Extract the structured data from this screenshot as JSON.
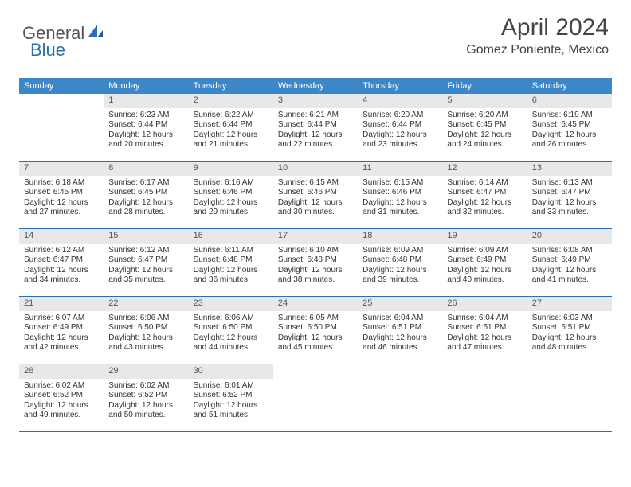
{
  "logo": {
    "general": "General",
    "blue": "Blue"
  },
  "header": {
    "month_title": "April 2024",
    "location": "Gomez Poniente, Mexico"
  },
  "dow": [
    "Sunday",
    "Monday",
    "Tuesday",
    "Wednesday",
    "Thursday",
    "Friday",
    "Saturday"
  ],
  "colors": {
    "header_bg": "#3b87c8",
    "row_border": "#2a6fb5",
    "daynum_bg": "#e8e8e8",
    "text": "#333333"
  },
  "weeks": [
    [
      {
        "blank": true
      },
      {
        "n": "1",
        "sr": "Sunrise: 6:23 AM",
        "ss": "Sunset: 6:44 PM",
        "d1": "Daylight: 12 hours",
        "d2": "and 20 minutes."
      },
      {
        "n": "2",
        "sr": "Sunrise: 6:22 AM",
        "ss": "Sunset: 6:44 PM",
        "d1": "Daylight: 12 hours",
        "d2": "and 21 minutes."
      },
      {
        "n": "3",
        "sr": "Sunrise: 6:21 AM",
        "ss": "Sunset: 6:44 PM",
        "d1": "Daylight: 12 hours",
        "d2": "and 22 minutes."
      },
      {
        "n": "4",
        "sr": "Sunrise: 6:20 AM",
        "ss": "Sunset: 6:44 PM",
        "d1": "Daylight: 12 hours",
        "d2": "and 23 minutes."
      },
      {
        "n": "5",
        "sr": "Sunrise: 6:20 AM",
        "ss": "Sunset: 6:45 PM",
        "d1": "Daylight: 12 hours",
        "d2": "and 24 minutes."
      },
      {
        "n": "6",
        "sr": "Sunrise: 6:19 AM",
        "ss": "Sunset: 6:45 PM",
        "d1": "Daylight: 12 hours",
        "d2": "and 26 minutes."
      }
    ],
    [
      {
        "n": "7",
        "sr": "Sunrise: 6:18 AM",
        "ss": "Sunset: 6:45 PM",
        "d1": "Daylight: 12 hours",
        "d2": "and 27 minutes."
      },
      {
        "n": "8",
        "sr": "Sunrise: 6:17 AM",
        "ss": "Sunset: 6:45 PM",
        "d1": "Daylight: 12 hours",
        "d2": "and 28 minutes."
      },
      {
        "n": "9",
        "sr": "Sunrise: 6:16 AM",
        "ss": "Sunset: 6:46 PM",
        "d1": "Daylight: 12 hours",
        "d2": "and 29 minutes."
      },
      {
        "n": "10",
        "sr": "Sunrise: 6:15 AM",
        "ss": "Sunset: 6:46 PM",
        "d1": "Daylight: 12 hours",
        "d2": "and 30 minutes."
      },
      {
        "n": "11",
        "sr": "Sunrise: 6:15 AM",
        "ss": "Sunset: 6:46 PM",
        "d1": "Daylight: 12 hours",
        "d2": "and 31 minutes."
      },
      {
        "n": "12",
        "sr": "Sunrise: 6:14 AM",
        "ss": "Sunset: 6:47 PM",
        "d1": "Daylight: 12 hours",
        "d2": "and 32 minutes."
      },
      {
        "n": "13",
        "sr": "Sunrise: 6:13 AM",
        "ss": "Sunset: 6:47 PM",
        "d1": "Daylight: 12 hours",
        "d2": "and 33 minutes."
      }
    ],
    [
      {
        "n": "14",
        "sr": "Sunrise: 6:12 AM",
        "ss": "Sunset: 6:47 PM",
        "d1": "Daylight: 12 hours",
        "d2": "and 34 minutes."
      },
      {
        "n": "15",
        "sr": "Sunrise: 6:12 AM",
        "ss": "Sunset: 6:47 PM",
        "d1": "Daylight: 12 hours",
        "d2": "and 35 minutes."
      },
      {
        "n": "16",
        "sr": "Sunrise: 6:11 AM",
        "ss": "Sunset: 6:48 PM",
        "d1": "Daylight: 12 hours",
        "d2": "and 36 minutes."
      },
      {
        "n": "17",
        "sr": "Sunrise: 6:10 AM",
        "ss": "Sunset: 6:48 PM",
        "d1": "Daylight: 12 hours",
        "d2": "and 38 minutes."
      },
      {
        "n": "18",
        "sr": "Sunrise: 6:09 AM",
        "ss": "Sunset: 6:48 PM",
        "d1": "Daylight: 12 hours",
        "d2": "and 39 minutes."
      },
      {
        "n": "19",
        "sr": "Sunrise: 6:09 AM",
        "ss": "Sunset: 6:49 PM",
        "d1": "Daylight: 12 hours",
        "d2": "and 40 minutes."
      },
      {
        "n": "20",
        "sr": "Sunrise: 6:08 AM",
        "ss": "Sunset: 6:49 PM",
        "d1": "Daylight: 12 hours",
        "d2": "and 41 minutes."
      }
    ],
    [
      {
        "n": "21",
        "sr": "Sunrise: 6:07 AM",
        "ss": "Sunset: 6:49 PM",
        "d1": "Daylight: 12 hours",
        "d2": "and 42 minutes."
      },
      {
        "n": "22",
        "sr": "Sunrise: 6:06 AM",
        "ss": "Sunset: 6:50 PM",
        "d1": "Daylight: 12 hours",
        "d2": "and 43 minutes."
      },
      {
        "n": "23",
        "sr": "Sunrise: 6:06 AM",
        "ss": "Sunset: 6:50 PM",
        "d1": "Daylight: 12 hours",
        "d2": "and 44 minutes."
      },
      {
        "n": "24",
        "sr": "Sunrise: 6:05 AM",
        "ss": "Sunset: 6:50 PM",
        "d1": "Daylight: 12 hours",
        "d2": "and 45 minutes."
      },
      {
        "n": "25",
        "sr": "Sunrise: 6:04 AM",
        "ss": "Sunset: 6:51 PM",
        "d1": "Daylight: 12 hours",
        "d2": "and 46 minutes."
      },
      {
        "n": "26",
        "sr": "Sunrise: 6:04 AM",
        "ss": "Sunset: 6:51 PM",
        "d1": "Daylight: 12 hours",
        "d2": "and 47 minutes."
      },
      {
        "n": "27",
        "sr": "Sunrise: 6:03 AM",
        "ss": "Sunset: 6:51 PM",
        "d1": "Daylight: 12 hours",
        "d2": "and 48 minutes."
      }
    ],
    [
      {
        "n": "28",
        "sr": "Sunrise: 6:02 AM",
        "ss": "Sunset: 6:52 PM",
        "d1": "Daylight: 12 hours",
        "d2": "and 49 minutes."
      },
      {
        "n": "29",
        "sr": "Sunrise: 6:02 AM",
        "ss": "Sunset: 6:52 PM",
        "d1": "Daylight: 12 hours",
        "d2": "and 50 minutes."
      },
      {
        "n": "30",
        "sr": "Sunrise: 6:01 AM",
        "ss": "Sunset: 6:52 PM",
        "d1": "Daylight: 12 hours",
        "d2": "and 51 minutes."
      },
      {
        "blank": true
      },
      {
        "blank": true
      },
      {
        "blank": true
      },
      {
        "blank": true
      }
    ]
  ]
}
